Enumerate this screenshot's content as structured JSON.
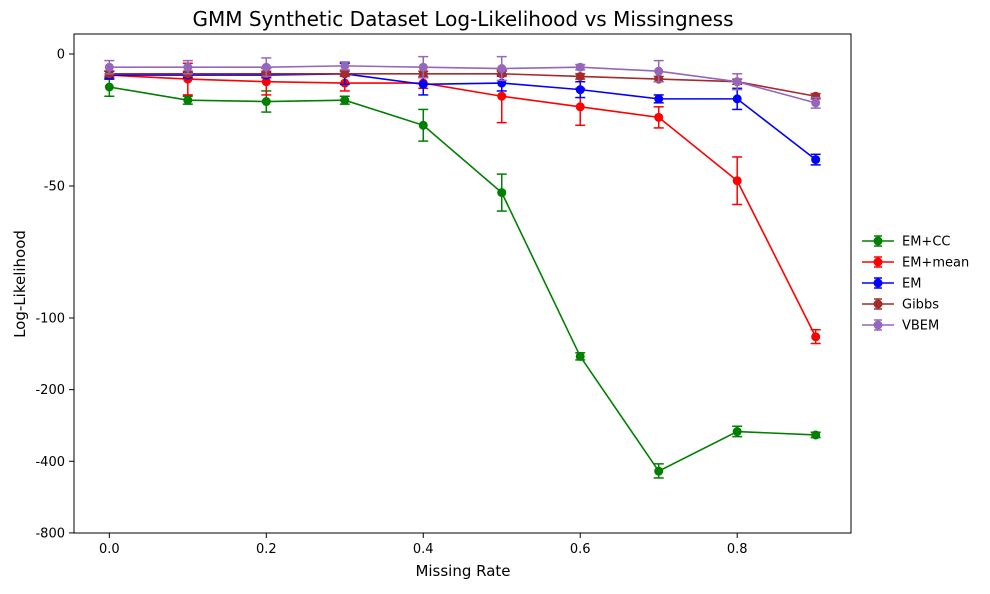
{
  "chart_data": {
    "type": "line",
    "title": "GMM Synthetic Dataset Log-Likelihood vs Missingness",
    "xlabel": "Missing Rate",
    "ylabel": "Log-Likelihood",
    "xlim": [
      -0.045,
      0.945
    ],
    "x_ticks": [
      0.0,
      0.2,
      0.4,
      0.6,
      0.8
    ],
    "x_tick_labels": [
      "0.0",
      "0.2",
      "0.4",
      "0.6",
      "0.8"
    ],
    "y_ticks": [
      0,
      -50,
      -100,
      -200,
      -400,
      -800
    ],
    "y_tick_labels": [
      "0",
      "-50",
      "-100",
      "-200",
      "-400",
      "-800"
    ],
    "y_scale": "piecewise: linear from 0 to -100, log-like compressed below -100",
    "grid": false,
    "legend_position": "center-right, outside plot",
    "x": [
      0.0,
      0.1,
      0.2,
      0.3,
      0.4,
      0.5,
      0.6,
      0.7,
      0.8,
      0.9
    ],
    "series": [
      {
        "name": "EM+CC",
        "color": "#008000",
        "values": [
          -12.5,
          -17.5,
          -18,
          -17.5,
          -27,
          -52.5,
          -145,
          -440,
          -300,
          -310
        ],
        "errors": [
          3.5,
          1.5,
          4,
          1.5,
          6,
          7,
          5,
          30,
          15,
          8
        ]
      },
      {
        "name": "EM+mean",
        "color": "#ff0000",
        "values": [
          -8,
          -9.5,
          -10.5,
          -11,
          -11,
          -16,
          -20,
          -24,
          -48,
          -120
        ],
        "errors": [
          1.5,
          6,
          5,
          3,
          2,
          10,
          7,
          4,
          9,
          8
        ]
      },
      {
        "name": "EM",
        "color": "#0000ff",
        "values": [
          -8,
          -8,
          -8,
          -7.5,
          -11.5,
          -11,
          -13.5,
          -17,
          -17,
          -40
        ],
        "errors": [
          1.5,
          1,
          1,
          4,
          4,
          3,
          3,
          1.5,
          4,
          2
        ]
      },
      {
        "name": "Gibbs",
        "color": "#a52a2a",
        "values": [
          -7.5,
          -7.5,
          -7.5,
          -7.5,
          -7.5,
          -7.5,
          -8.5,
          -9.5,
          -10.5,
          -16
        ],
        "errors": [
          1,
          1,
          1,
          1,
          1,
          1,
          1,
          1,
          1,
          1
        ]
      },
      {
        "name": "VBEM",
        "color": "#9467bd",
        "values": [
          -5,
          -5,
          -5,
          -4.5,
          -5,
          -5.5,
          -5,
          -6.5,
          -10.5,
          -18.5
        ],
        "errors": [
          2.5,
          2.5,
          3.5,
          1.5,
          4,
          4.5,
          1,
          4,
          3,
          2
        ]
      }
    ]
  }
}
